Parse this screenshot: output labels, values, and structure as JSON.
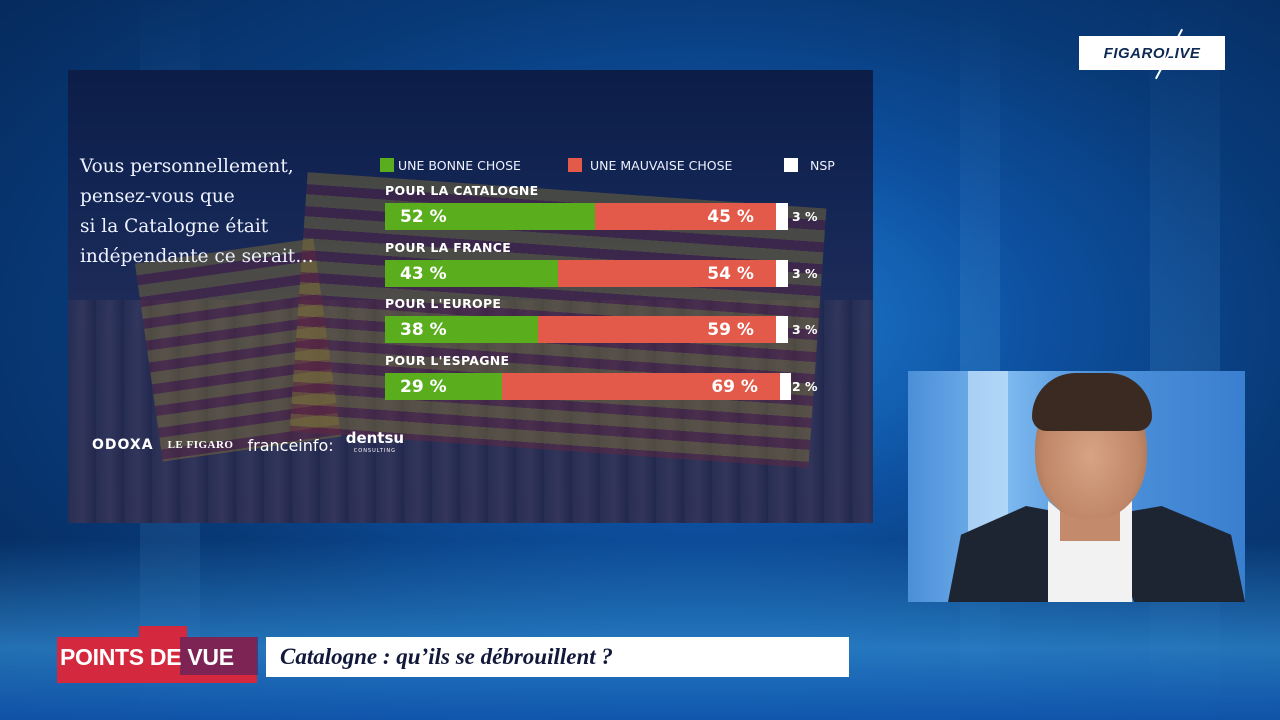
{
  "logo": {
    "text": "FIGAROLIVE"
  },
  "chart_data": {
    "type": "bar",
    "question": "Vous personnellement, pensez-vous que si la Catalogne était indépendante ce serait…",
    "question_lines": [
      "Vous personnellement,",
      "pensez-vous que",
      "si la Catalogne était",
      "indépendante ce serait…"
    ],
    "legend": [
      {
        "label": "UNE BONNE CHOSE",
        "color": "#5aae1e"
      },
      {
        "label": "UNE MAUVAISE CHOSE",
        "color": "#e35a4b"
      },
      {
        "label": "NSP",
        "color": "#ffffff"
      }
    ],
    "categories": [
      "POUR LA CATALOGNE",
      "POUR LA FRANCE",
      "POUR L'EUROPE",
      "POUR L'ESPAGNE"
    ],
    "series": [
      {
        "name": "UNE BONNE CHOSE",
        "values": [
          52,
          43,
          38,
          29
        ]
      },
      {
        "name": "UNE MAUVAISE CHOSE",
        "values": [
          45,
          54,
          59,
          69
        ]
      },
      {
        "name": "NSP",
        "values": [
          3,
          3,
          3,
          2
        ]
      }
    ],
    "value_labels": {
      "good": [
        "52 %",
        "43 %",
        "38 %",
        "29 %"
      ],
      "bad": [
        "45 %",
        "54 %",
        "59 %",
        "69 %"
      ],
      "nsp": [
        "3 %",
        "3 %",
        "3 %",
        "2 %"
      ]
    },
    "stacked": true,
    "xlim": [
      0,
      100
    ],
    "sources": [
      "ODOXA",
      "LE FIGARO",
      "franceinfo:",
      "dentsu",
      "CONSULTING"
    ]
  },
  "lower_third": {
    "badge": "POINTS DE VUE",
    "title": "Catalogne : qu’ils se débrouillent ?"
  }
}
